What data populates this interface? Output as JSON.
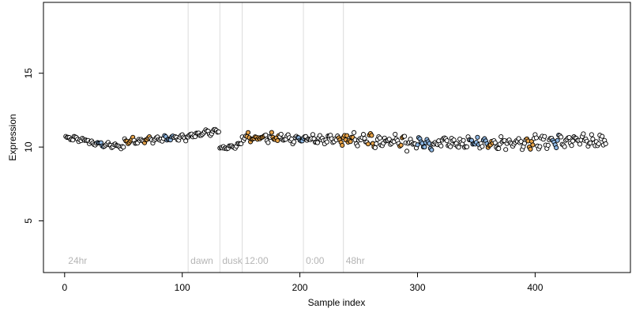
{
  "chart_data": {
    "type": "scatter",
    "xlabel": "Sample index",
    "ylabel": "Expression",
    "xlim": [
      -18,
      481
    ],
    "ylim": [
      1.5,
      19.8
    ],
    "x_ticks": [
      0,
      100,
      200,
      300,
      400
    ],
    "y_ticks": [
      5,
      10,
      15
    ],
    "grid": false,
    "vlines": [
      {
        "x": 105,
        "label": "dawn"
      },
      {
        "x": 132,
        "label": "dusk"
      },
      {
        "x": 151,
        "label": "12:00"
      },
      {
        "x": 203,
        "label": "0:00"
      },
      {
        "x": 237,
        "label": "48hr"
      }
    ],
    "annotations": [
      {
        "label": "24hr",
        "x": 3
      }
    ],
    "colors": {
      "default": "#ffffff",
      "orange": "#e8a44a",
      "blue": "#8eb8e5"
    },
    "segments": [
      {
        "x_start": 1,
        "x_end": 20,
        "y_start": 10.6,
        "y_end": 10.45,
        "amp": 0.18
      },
      {
        "x_start": 21,
        "x_end": 50,
        "y_start": 10.3,
        "y_end": 10.0,
        "amp": 0.15
      },
      {
        "x_start": 51,
        "x_end": 104,
        "y_start": 10.4,
        "y_end": 10.65,
        "amp": 0.2
      },
      {
        "x_start": 105,
        "x_end": 131,
        "y_start": 10.75,
        "y_end": 11.1,
        "amp": 0.18
      },
      {
        "x_start": 132,
        "x_end": 150,
        "y_start": 9.9,
        "y_end": 10.15,
        "amp": 0.15
      },
      {
        "x_start": 151,
        "x_end": 236,
        "y_start": 10.7,
        "y_end": 10.45,
        "amp": 0.3
      },
      {
        "x_start": 237,
        "x_end": 290,
        "y_start": 10.5,
        "y_end": 10.4,
        "amp": 0.45
      },
      {
        "x_start": 291,
        "x_end": 460,
        "y_start": 10.2,
        "y_end": 10.45,
        "amp": 0.42
      }
    ],
    "highlight": {
      "orange": [
        [
          52,
          58
        ],
        [
          68,
          72
        ],
        [
          155,
          170
        ],
        [
          176,
          182
        ],
        [
          233,
          245
        ],
        [
          258,
          263
        ],
        [
          285,
          288
        ],
        [
          360,
          364
        ],
        [
          393,
          398
        ]
      ],
      "blue": [
        [
          28,
          33
        ],
        [
          85,
          92
        ],
        [
          198,
          203
        ],
        [
          300,
          312
        ],
        [
          345,
          352
        ],
        [
          356,
          359
        ],
        [
          415,
          420
        ]
      ]
    }
  }
}
